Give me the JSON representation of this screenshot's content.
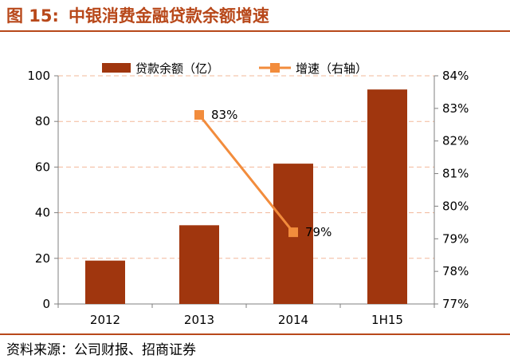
{
  "figure": {
    "number": "图 15:",
    "title": "中银消费金融贷款余额增速",
    "source": "资料来源：公司财报、招商证券"
  },
  "colors": {
    "bar": "#a0360e",
    "line": "#f28c3c",
    "accent": "#b8481a",
    "gridline": "#f2b89a"
  },
  "chart_data": {
    "type": "bar",
    "categories": [
      "2012",
      "2013",
      "2014",
      "1H15"
    ],
    "series": [
      {
        "name": "贷款余额（亿）",
        "type": "bar",
        "axis": "left",
        "values": [
          19,
          34.5,
          61.5,
          94
        ]
      },
      {
        "name": "增速（右轴）",
        "type": "line",
        "axis": "right",
        "values": [
          null,
          82.8,
          79.2,
          null
        ],
        "labels": [
          null,
          "83%",
          "79%",
          null
        ]
      }
    ],
    "y_left": {
      "min": 0,
      "max": 100,
      "ticks": [
        0,
        20,
        40,
        60,
        80,
        100
      ]
    },
    "y_right": {
      "min": 77,
      "max": 84,
      "ticks": [
        "77%",
        "78%",
        "79%",
        "80%",
        "81%",
        "82%",
        "83%",
        "84%"
      ]
    },
    "grid": true,
    "legend": "top"
  }
}
